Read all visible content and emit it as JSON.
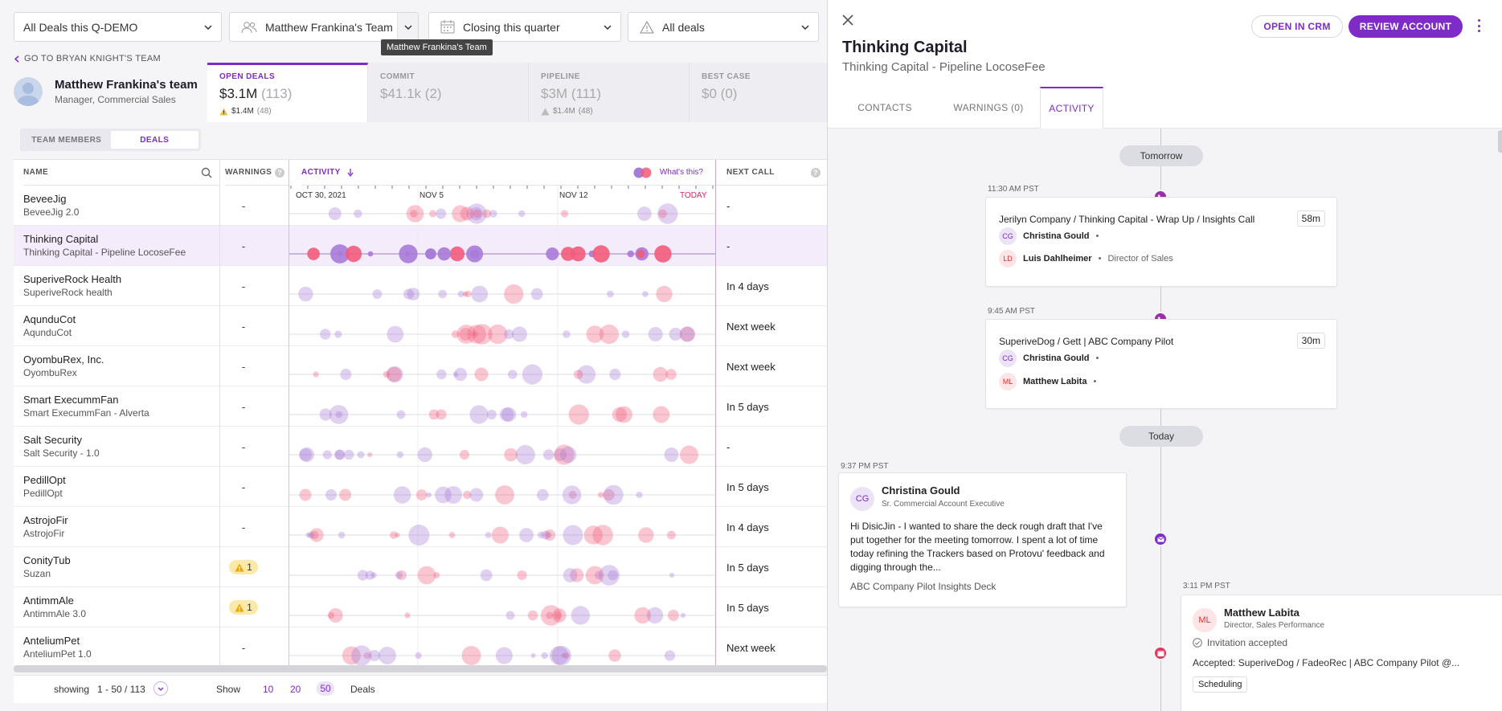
{
  "filters": {
    "deals": "All Deals this Q-DEMO",
    "team": "Matthew Frankina's Team",
    "period": "Closing this quarter",
    "status": "All deals",
    "team_tooltip": "Matthew Frankina's Team"
  },
  "back_link": "GO TO BRYAN KNIGHT'S TEAM",
  "team": {
    "name": "Matthew Frankina's team",
    "role": "Manager, Commercial Sales"
  },
  "kpis": [
    {
      "label": "OPEN DEALS",
      "value": "$3.1M",
      "count": "(113)",
      "sub_value": "$1.4M",
      "sub_count": "(48)",
      "active": true
    },
    {
      "label": "COMMIT",
      "value": "$41.1k",
      "count": "(2)",
      "active": false
    },
    {
      "label": "PIPELINE",
      "value": "$3M",
      "count": "(111)",
      "sub_value": "$1.4M",
      "sub_count": "(48)",
      "active": false
    },
    {
      "label": "BEST CASE",
      "value": "$0",
      "count": "(0)",
      "active": false
    }
  ],
  "view_toggle": {
    "team_members": "TEAM MEMBERS",
    "deals": "DEALS"
  },
  "columns": {
    "name": "NAME",
    "warnings": "WARNINGS",
    "activity": "ACTIVITY",
    "whats_this": "What's this?",
    "next_call": "NEXT CALL",
    "timeline_labels": [
      "OCT 30, 2021",
      "NOV 5",
      "NOV 12",
      "TODAY"
    ]
  },
  "deals": [
    {
      "name": "BeveeJig",
      "sub": "BeveeJig 2.0",
      "warnings": "-",
      "next_call": "-"
    },
    {
      "name": "Thinking Capital",
      "sub": "Thinking Capital - Pipeline LocoseFee",
      "warnings": "-",
      "next_call": "-",
      "selected": true
    },
    {
      "name": "SuperiveRock Health",
      "sub": "SuperiveRock health",
      "warnings": "-",
      "next_call": "In 4 days"
    },
    {
      "name": "AqunduCot",
      "sub": "AqunduCot",
      "warnings": "-",
      "next_call": "Next week"
    },
    {
      "name": "OyombuRex, Inc.",
      "sub": "OyombuRex",
      "warnings": "-",
      "next_call": "Next week"
    },
    {
      "name": "Smart ExecummFan",
      "sub": "Smart ExecummFan - Alverta",
      "warnings": "-",
      "next_call": "In 5 days"
    },
    {
      "name": "Salt Security",
      "sub": "Salt Security - 1.0",
      "warnings": "-",
      "next_call": "-"
    },
    {
      "name": "PedillOpt",
      "sub": "PedillOpt",
      "warnings": "-",
      "next_call": "In 5 days"
    },
    {
      "name": "AstrojoFir",
      "sub": "AstrojoFir",
      "warnings": "-",
      "next_call": "In 4 days"
    },
    {
      "name": "ConityTub",
      "sub": "Suzan",
      "warnings": "1",
      "next_call": "In 5 days"
    },
    {
      "name": "AntimmAle",
      "sub": "AntimmAle 3.0",
      "warnings": "1",
      "next_call": "In 5 days"
    },
    {
      "name": "AnteliumPet",
      "sub": "AnteliumPet 1.0",
      "warnings": "-",
      "next_call": "Next week"
    }
  ],
  "footer": {
    "showing": "showing",
    "range": "1 - 50 / 113",
    "show": "Show",
    "sizes": [
      "10",
      "20",
      "50"
    ],
    "deals": "Deals"
  },
  "panel": {
    "title": "Thinking Capital",
    "subtitle": "Thinking Capital - Pipeline LocoseFee",
    "open_crm": "OPEN IN CRM",
    "review": "REVIEW ACCOUNT",
    "tabs": [
      "CONTACTS",
      "WARNINGS (0)",
      "ACTIVITY"
    ],
    "days": [
      "Tomorrow",
      "Today"
    ],
    "meeting1": {
      "time": "11:30 AM PST",
      "title": "Jerilyn Company / Thinking Capital - Wrap Up / Insights Call",
      "duration": "58m",
      "attendees": [
        {
          "initials": "CG",
          "name": "Christina Gould",
          "role": ""
        },
        {
          "initials": "LD",
          "name": "Luis Dahlheimer",
          "role": "Director of Sales"
        }
      ]
    },
    "meeting2": {
      "time": "9:45 AM PST",
      "title": "SuperiveDog / Gett | ABC Company Pilot",
      "duration": "30m",
      "attendees": [
        {
          "initials": "CG",
          "name": "Christina Gould",
          "role": ""
        },
        {
          "initials": "ML",
          "name": "Matthew Labita",
          "role": ""
        }
      ]
    },
    "email": {
      "time": "9:37 PM PST",
      "initials": "CG",
      "name": "Christina Gould",
      "role": "Sr. Commercial Account Executive",
      "body": "Hi DisicJin - I wanted to share the deck rough draft that I've put together for the meeting tomorrow. I spent a lot of time today refining the Trackers based on Protovu' feedback and digging through the...",
      "attachment": "ABC Company Pilot Insights Deck"
    },
    "invite": {
      "time": "3:11 PM PST",
      "initials": "ML",
      "name": "Matthew Labita",
      "role": "Director, Sales Performance",
      "status": "Invitation accepted",
      "detail": "Accepted: SuperiveDog / FadeoRec | ABC Company Pilot @...",
      "tag": "Scheduling"
    }
  },
  "colors": {
    "accent": "#7e2bc7",
    "bubble_purple": "#a77bd8",
    "bubble_pink": "#f25c7a",
    "today": "#e0245e"
  }
}
